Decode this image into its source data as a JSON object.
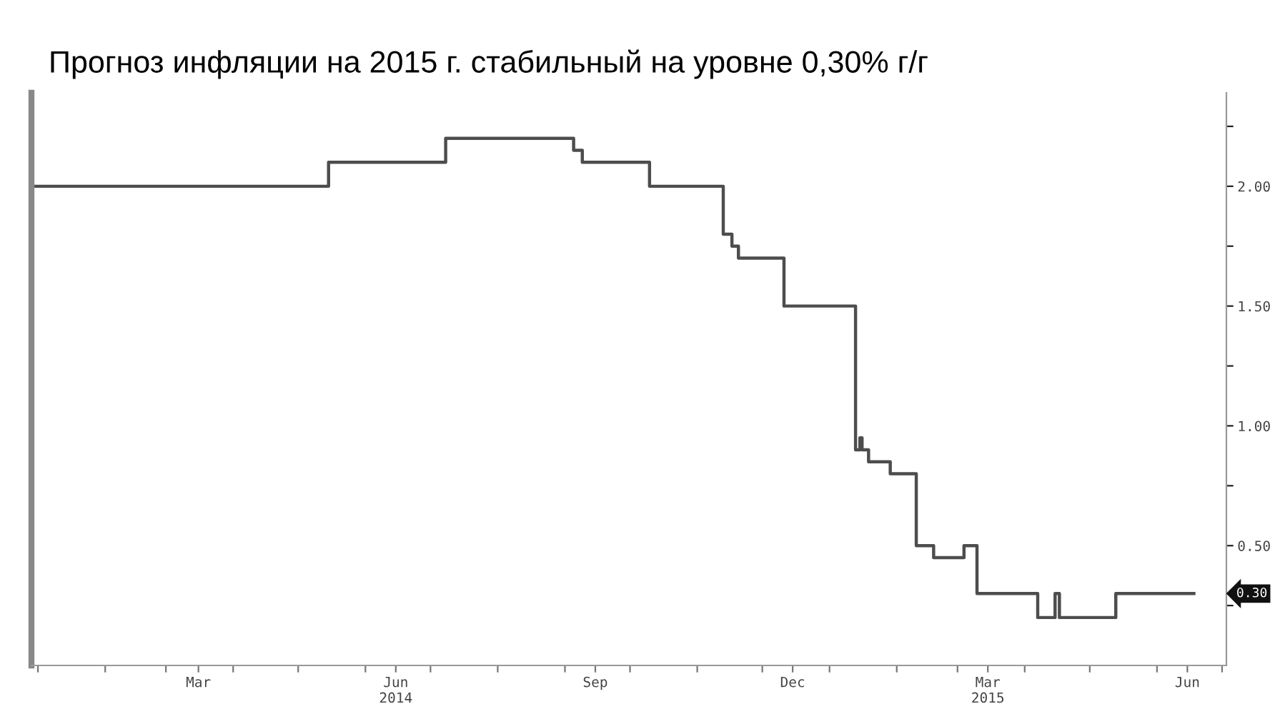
{
  "chart_data": {
    "type": "step",
    "title": "Прогноз инфляции на 2015 г. стабильный на уровне 0,30% г/г",
    "x": [
      "2013-12-30",
      "2014-05-15",
      "2014-07-08",
      "2014-09-05",
      "2014-09-09",
      "2014-10-10",
      "2014-11-13",
      "2014-11-17",
      "2014-11-20",
      "2014-12-11",
      "2015-01-13",
      "2015-01-15",
      "2015-01-16",
      "2015-01-19",
      "2015-01-29",
      "2015-02-10",
      "2015-02-18",
      "2015-03-04",
      "2015-03-10",
      "2015-04-07",
      "2015-04-15",
      "2015-04-17",
      "2015-05-13",
      "2015-06-18"
    ],
    "series": [
      {
        "color": "#4d4d4d",
        "values": [
          2.0,
          2.1,
          2.2,
          2.15,
          2.1,
          2.0,
          1.8,
          1.75,
          1.7,
          1.5,
          0.9,
          0.95,
          0.9,
          0.85,
          0.8,
          0.5,
          0.45,
          0.5,
          0.3,
          0.2,
          0.3,
          0.2,
          0.3,
          0.3
        ]
      }
    ],
    "xlim": [
      "2013-12-29",
      "2015-07-03"
    ],
    "xticks": [
      {
        "value": "2014-01-01",
        "label": null
      },
      {
        "value": "2014-02-01",
        "label": null
      },
      {
        "value": "2014-03-01",
        "label": null
      },
      {
        "value": "2014-03-16",
        "label": "Mar"
      },
      {
        "value": "2014-04-01",
        "label": null
      },
      {
        "value": "2014-05-01",
        "label": null
      },
      {
        "value": "2014-06-01",
        "label": null
      },
      {
        "value": "2014-06-15",
        "label": "Jun\n2014"
      },
      {
        "value": "2014-07-01",
        "label": null
      },
      {
        "value": "2014-08-01",
        "label": null
      },
      {
        "value": "2014-09-01",
        "label": null
      },
      {
        "value": "2014-09-15",
        "label": "Sep"
      },
      {
        "value": "2014-10-01",
        "label": null
      },
      {
        "value": "2014-11-01",
        "label": null
      },
      {
        "value": "2014-12-01",
        "label": null
      },
      {
        "value": "2014-12-15",
        "label": "Dec"
      },
      {
        "value": "2015-01-01",
        "label": null
      },
      {
        "value": "2015-02-01",
        "label": null
      },
      {
        "value": "2015-03-01",
        "label": null
      },
      {
        "value": "2015-03-15",
        "label": "Mar\n2015"
      },
      {
        "value": "2015-04-01",
        "label": null
      },
      {
        "value": "2015-05-01",
        "label": null
      },
      {
        "value": "2015-06-01",
        "label": null
      },
      {
        "value": "2015-06-15",
        "label": "Jun"
      },
      {
        "value": "2015-07-01",
        "label": null
      }
    ],
    "ylim": [
      0,
      2.39
    ],
    "yticks": [
      {
        "value": 0.25,
        "label": null
      },
      {
        "value": 0.5,
        "label": "0.50"
      },
      {
        "value": 0.75,
        "label": null
      },
      {
        "value": 1.0,
        "label": "1.00"
      },
      {
        "value": 1.25,
        "label": null
      },
      {
        "value": 1.5,
        "label": "1.50"
      },
      {
        "value": 1.75,
        "label": null
      },
      {
        "value": 2.0,
        "label": "2.00"
      },
      {
        "value": 2.25,
        "label": null
      }
    ],
    "annotations": [
      "0.30"
    ],
    "grid": false,
    "legend": false
  }
}
